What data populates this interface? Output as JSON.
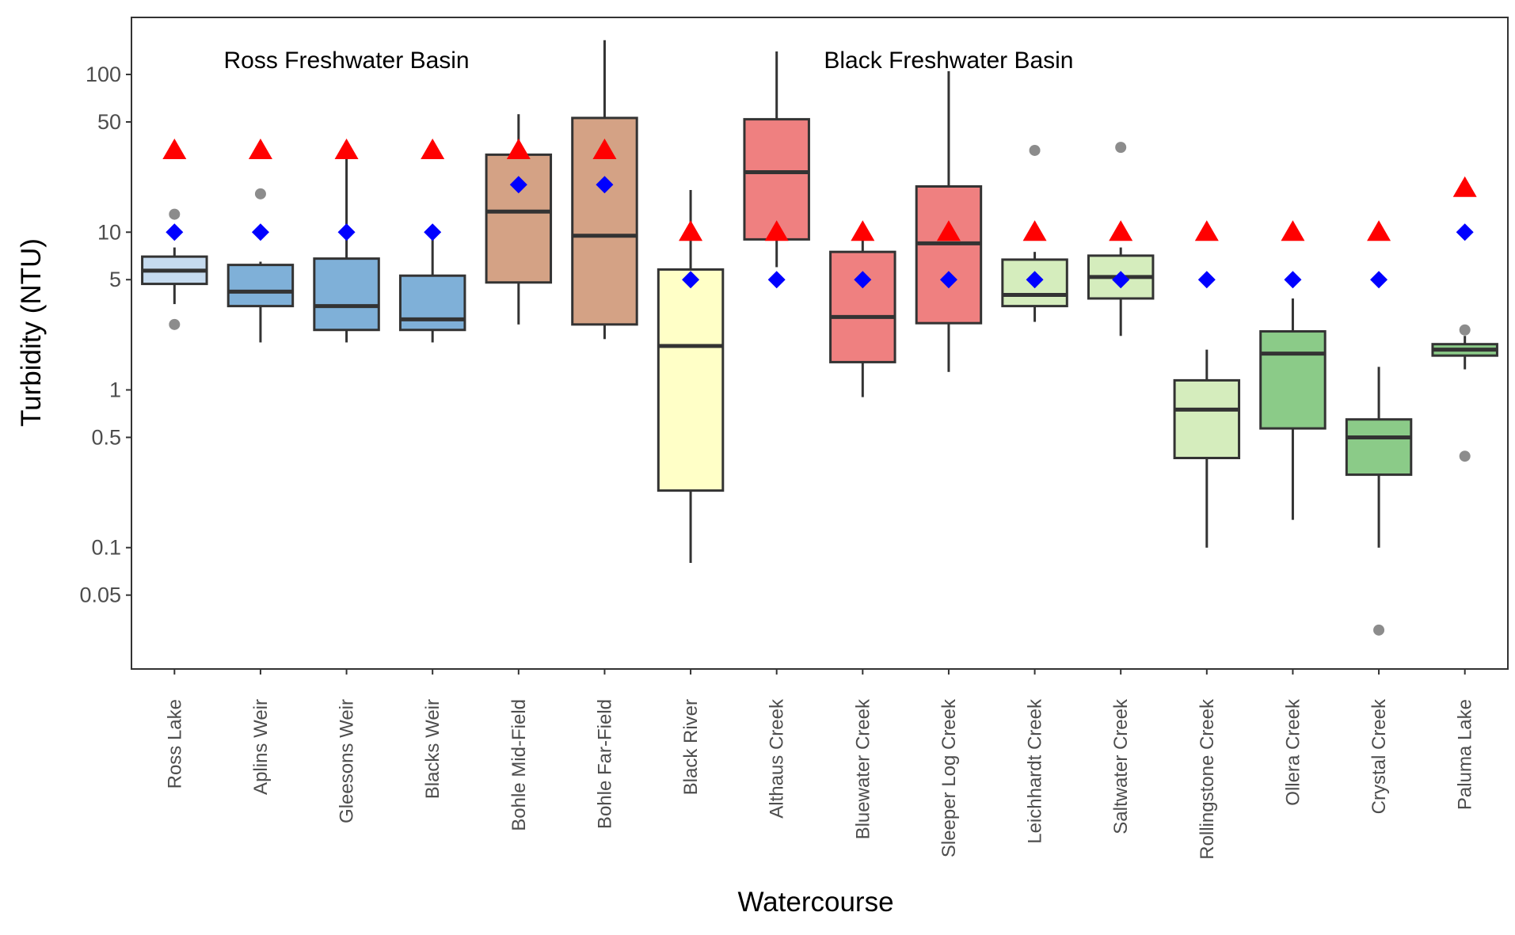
{
  "chart_data": {
    "type": "boxplot",
    "xlabel": "Watercourse",
    "ylabel": "Turbidity (NTU)",
    "yscale": "log",
    "ylim": [
      0.017,
      230
    ],
    "yticks": [
      {
        "value": 0.05,
        "label": "0.05"
      },
      {
        "value": 0.1,
        "label": "0.1"
      },
      {
        "value": 0.5,
        "label": "0.5"
      },
      {
        "value": 1,
        "label": "1"
      },
      {
        "value": 5,
        "label": "5"
      },
      {
        "value": 10,
        "label": "10"
      },
      {
        "value": 50,
        "label": "50"
      },
      {
        "value": 100,
        "label": "100"
      }
    ],
    "grid": false,
    "annotations": [
      {
        "text": "Ross Freshwater Basin",
        "x_category": "Gleesons Weir"
      },
      {
        "text": "Black Freshwater Basin",
        "x_category": "Sleeper Log Creek"
      }
    ],
    "categories": [
      "Ross Lake",
      "Aplins Weir",
      "Gleesons Weir",
      "Blacks Weir",
      "Bohle Mid-Field",
      "Bohle Far-Field",
      "Black River",
      "Althaus Creek",
      "Bluewater Creek",
      "Sleeper Log Creek",
      "Leichhardt Creek",
      "Saltwater Creek",
      "Rollingstone Creek",
      "Ollera Creek",
      "Crystal Creek",
      "Paluma Lake"
    ],
    "boxes": [
      {
        "name": "Ross Lake",
        "whisker_low": 3.5,
        "q1": 4.7,
        "median": 5.7,
        "q3": 7.0,
        "whisker_high": 8.0,
        "outliers": [
          2.6,
          13.0
        ],
        "fill": "#c6dbef"
      },
      {
        "name": "Aplins Weir",
        "whisker_low": 2.0,
        "q1": 3.4,
        "median": 4.2,
        "q3": 6.2,
        "whisker_high": 6.5,
        "outliers": [
          17.5
        ],
        "fill": "#7fb0d8"
      },
      {
        "name": "Gleesons Weir",
        "whisker_low": 2.0,
        "q1": 2.4,
        "median": 3.4,
        "q3": 6.8,
        "whisker_high": 30.0,
        "outliers": [],
        "fill": "#7fb0d8"
      },
      {
        "name": "Blacks Weir",
        "whisker_low": 2.0,
        "q1": 2.4,
        "median": 2.8,
        "q3": 5.3,
        "whisker_high": 10.0,
        "outliers": [],
        "fill": "#7fb0d8"
      },
      {
        "name": "Bohle Mid-Field",
        "whisker_low": 2.6,
        "q1": 4.8,
        "median": 13.5,
        "q3": 31.0,
        "whisker_high": 56.0,
        "outliers": [],
        "fill": "#d4a285"
      },
      {
        "name": "Bohle Far-Field",
        "whisker_low": 2.1,
        "q1": 2.6,
        "median": 9.5,
        "q3": 53.0,
        "whisker_high": 165.0,
        "outliers": [],
        "fill": "#d4a285"
      },
      {
        "name": "Black River",
        "whisker_low": 0.08,
        "q1": 0.23,
        "median": 1.9,
        "q3": 5.8,
        "whisker_high": 18.5,
        "outliers": [],
        "fill": "#ffffc7"
      },
      {
        "name": "Althaus Creek",
        "whisker_low": 6.0,
        "q1": 9.0,
        "median": 24.0,
        "q3": 52.0,
        "whisker_high": 140.0,
        "outliers": [],
        "fill": "#ef8080"
      },
      {
        "name": "Bluewater Creek",
        "whisker_low": 0.9,
        "q1": 1.5,
        "median": 2.9,
        "q3": 7.5,
        "whisker_high": 9.5,
        "outliers": [],
        "fill": "#ef8080"
      },
      {
        "name": "Sleeper Log Creek",
        "whisker_low": 1.3,
        "q1": 2.65,
        "median": 8.5,
        "q3": 19.5,
        "whisker_high": 105.0,
        "outliers": [],
        "fill": "#ef8080"
      },
      {
        "name": "Leichhardt Creek",
        "whisker_low": 2.7,
        "q1": 3.4,
        "median": 4.0,
        "q3": 6.7,
        "whisker_high": 7.5,
        "outliers": [
          33.0
        ],
        "fill": "#d5edbd"
      },
      {
        "name": "Saltwater Creek",
        "whisker_low": 2.2,
        "q1": 3.8,
        "median": 5.2,
        "q3": 7.1,
        "whisker_high": 8.0,
        "outliers": [
          34.5
        ],
        "fill": "#d5edbd"
      },
      {
        "name": "Rollingstone Creek",
        "whisker_low": 0.1,
        "q1": 0.37,
        "median": 0.75,
        "q3": 1.15,
        "whisker_high": 1.8,
        "outliers": [],
        "fill": "#d5edbd"
      },
      {
        "name": "Ollera Creek",
        "whisker_low": 0.15,
        "q1": 0.57,
        "median": 1.7,
        "q3": 2.35,
        "whisker_high": 3.8,
        "outliers": [],
        "fill": "#8bcb88"
      },
      {
        "name": "Crystal Creek",
        "whisker_low": 0.1,
        "q1": 0.29,
        "median": 0.5,
        "q3": 0.65,
        "whisker_high": 1.4,
        "outliers": [
          0.03
        ],
        "fill": "#8bcb88"
      },
      {
        "name": "Paluma Lake",
        "whisker_low": 1.35,
        "q1": 1.65,
        "median": 1.8,
        "q3": 1.95,
        "whisker_high": 2.2,
        "outliers": [
          2.4,
          0.38
        ],
        "fill": "#8bcb88"
      }
    ],
    "markers": {
      "triangle": {
        "color": "#ff0000",
        "values": [
          33,
          33,
          33,
          33,
          33,
          33,
          10,
          10,
          10,
          10,
          10,
          10,
          10,
          10,
          10,
          19
        ]
      },
      "diamond": {
        "color": "#0000ff",
        "values": [
          10,
          10,
          10,
          10,
          20,
          20,
          5,
          5,
          5,
          5,
          5,
          5,
          5,
          5,
          5,
          10
        ]
      }
    },
    "colors": {
      "box_outline": "#333333",
      "outlier": "#808080",
      "axis": "#333333"
    }
  }
}
